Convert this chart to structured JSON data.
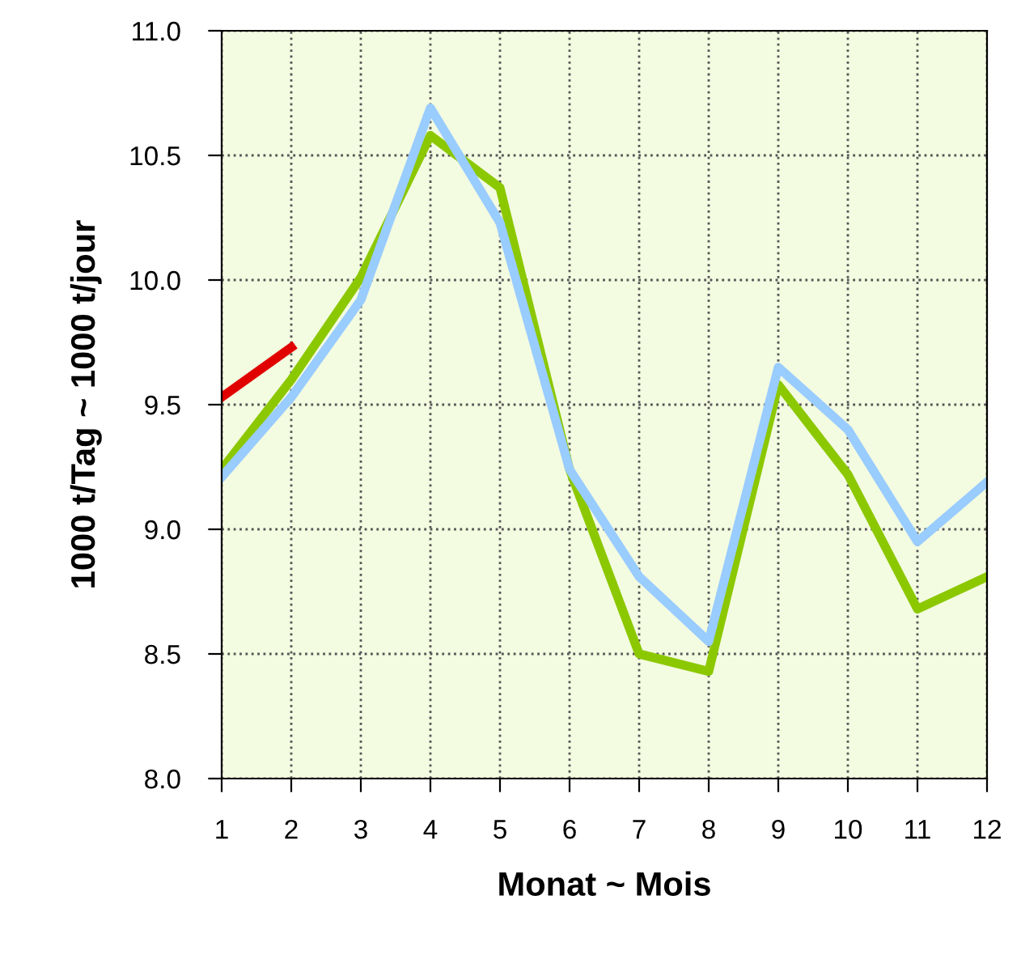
{
  "chart_data": {
    "type": "line",
    "xlabel": "Monat ~ Mois",
    "ylabel": "1000 t/Tag ~ 1000 t/jour",
    "x": [
      1,
      2,
      3,
      4,
      5,
      6,
      7,
      8,
      9,
      10,
      11,
      12
    ],
    "series": [
      {
        "color": "#8cc800",
        "values": [
          9.24,
          9.6,
          10.01,
          10.58,
          10.37,
          9.24,
          8.5,
          8.43,
          9.58,
          9.22,
          8.68,
          8.81
        ]
      },
      {
        "color": "#99ccff",
        "values": [
          9.21,
          9.53,
          9.92,
          10.69,
          10.23,
          9.24,
          8.81,
          8.55,
          9.65,
          9.4,
          8.95,
          9.19
        ]
      },
      {
        "color": "#e00000",
        "values": [
          9.53,
          9.73,
          null,
          null,
          null,
          null,
          null,
          null,
          null,
          null,
          null,
          null
        ]
      }
    ],
    "xlim": [
      1,
      12
    ],
    "xticks": [
      1,
      2,
      3,
      4,
      5,
      6,
      7,
      8,
      9,
      10,
      11,
      12
    ],
    "ylim": [
      8.0,
      11.0
    ],
    "yticks": [
      {
        "value": 8.0,
        "label": "8.0"
      },
      {
        "value": 8.5,
        "label": "8.5"
      },
      {
        "value": 9.0,
        "label": "9.0"
      },
      {
        "value": 9.5,
        "label": "9.5"
      },
      {
        "value": 10.0,
        "label": "10.0"
      },
      {
        "value": 10.5,
        "label": "10.5"
      },
      {
        "value": 11.0,
        "label": "11.0"
      }
    ],
    "grid": true,
    "legend": false,
    "marker": "none",
    "line_style": "solid"
  }
}
